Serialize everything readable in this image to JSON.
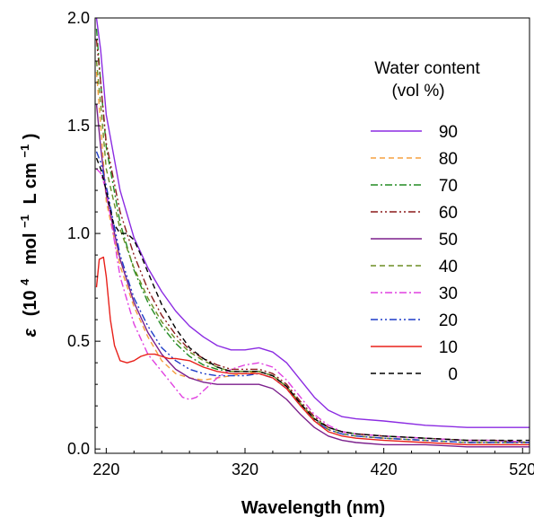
{
  "chart_data": {
    "type": "line",
    "xlabel": "Wavelength (nm)",
    "ylabel": {
      "symbol": "ε",
      "open": "(10",
      "sup1": "4",
      "mid": "mol",
      "sup2": "−1",
      "unit2": "L cm",
      "sup3": "−1",
      "close": ")"
    },
    "xlim": [
      212,
      525
    ],
    "ylim": [
      -0.02,
      2.0
    ],
    "x_ticks": [
      220,
      320,
      420,
      520
    ],
    "x_tick_labels": [
      "220",
      "320",
      "420",
      "520"
    ],
    "y_ticks": [
      0.0,
      0.5,
      1.0,
      1.5,
      2.0
    ],
    "y_tick_labels": [
      "0.0",
      "0.5",
      "1.0",
      "1.5",
      "2.0"
    ],
    "grid": false,
    "legend": {
      "position": "top-right",
      "title": [
        "Water content",
        "(vol %)"
      ]
    },
    "series": [
      {
        "name": "90",
        "color": "#8B2BE2",
        "dash": "solid",
        "x": [
          213,
          216,
          220,
          230,
          240,
          250,
          260,
          270,
          280,
          290,
          300,
          310,
          320,
          330,
          340,
          350,
          360,
          370,
          380,
          390,
          400,
          420,
          450,
          480,
          500,
          525
        ],
        "y": [
          2.0,
          1.85,
          1.55,
          1.2,
          0.98,
          0.84,
          0.73,
          0.64,
          0.57,
          0.52,
          0.48,
          0.46,
          0.46,
          0.47,
          0.45,
          0.4,
          0.32,
          0.24,
          0.18,
          0.15,
          0.14,
          0.13,
          0.11,
          0.1,
          0.1,
          0.1
        ]
      },
      {
        "name": "80",
        "color": "#F5A040",
        "dash": "dashed",
        "x": [
          213,
          216,
          220,
          230,
          240,
          250,
          260,
          270,
          280,
          290,
          300,
          310,
          320,
          330,
          340,
          350,
          360,
          370,
          380,
          390,
          400,
          420,
          450,
          480,
          500,
          525
        ],
        "y": [
          1.75,
          1.5,
          1.15,
          0.85,
          0.66,
          0.52,
          0.41,
          0.35,
          0.33,
          0.32,
          0.33,
          0.34,
          0.35,
          0.36,
          0.34,
          0.29,
          0.21,
          0.13,
          0.09,
          0.07,
          0.06,
          0.05,
          0.04,
          0.03,
          0.03,
          0.03
        ]
      },
      {
        "name": "70",
        "color": "#228B22",
        "dash": "dashdot",
        "x": [
          213,
          216,
          220,
          230,
          240,
          250,
          260,
          270,
          280,
          290,
          300,
          310,
          320,
          330,
          340,
          350,
          360,
          370,
          380,
          390,
          400,
          420,
          450,
          480,
          500,
          525
        ],
        "y": [
          1.95,
          1.7,
          1.4,
          1.05,
          0.83,
          0.68,
          0.57,
          0.49,
          0.43,
          0.39,
          0.37,
          0.36,
          0.36,
          0.36,
          0.34,
          0.29,
          0.21,
          0.14,
          0.1,
          0.08,
          0.07,
          0.06,
          0.05,
          0.04,
          0.04,
          0.03
        ]
      },
      {
        "name": "60",
        "color": "#8B1A1A",
        "dash": "dashdotdot",
        "x": [
          213,
          216,
          220,
          230,
          240,
          250,
          260,
          270,
          280,
          290,
          300,
          310,
          320,
          330,
          340,
          350,
          360,
          370,
          380,
          390,
          400,
          420,
          450,
          480,
          500,
          525
        ],
        "y": [
          1.9,
          1.7,
          1.42,
          1.1,
          0.9,
          0.74,
          0.62,
          0.53,
          0.46,
          0.42,
          0.39,
          0.37,
          0.37,
          0.37,
          0.35,
          0.3,
          0.22,
          0.15,
          0.1,
          0.08,
          0.07,
          0.06,
          0.05,
          0.04,
          0.04,
          0.03
        ]
      },
      {
        "name": "50",
        "color": "#7B1F8C",
        "dash": "solid",
        "x": [
          213,
          216,
          220,
          230,
          240,
          250,
          260,
          270,
          280,
          290,
          300,
          310,
          320,
          330,
          340,
          350,
          360,
          370,
          380,
          390,
          400,
          420,
          450,
          480,
          500,
          525
        ],
        "y": [
          1.6,
          1.4,
          1.18,
          0.88,
          0.68,
          0.54,
          0.44,
          0.37,
          0.33,
          0.31,
          0.3,
          0.3,
          0.3,
          0.3,
          0.28,
          0.23,
          0.16,
          0.1,
          0.06,
          0.04,
          0.03,
          0.02,
          0.02,
          0.01,
          0.01,
          0.01
        ]
      },
      {
        "name": "40",
        "color": "#6B8E23",
        "dash": "dashed",
        "x": [
          213,
          216,
          220,
          230,
          240,
          250,
          260,
          270,
          280,
          290,
          300,
          310,
          320,
          330,
          340,
          350,
          360,
          370,
          380,
          390,
          400,
          420,
          450,
          480,
          500,
          525
        ],
        "y": [
          1.8,
          1.6,
          1.3,
          1.02,
          0.84,
          0.7,
          0.59,
          0.51,
          0.45,
          0.41,
          0.38,
          0.36,
          0.36,
          0.36,
          0.34,
          0.29,
          0.21,
          0.14,
          0.09,
          0.07,
          0.06,
          0.05,
          0.04,
          0.03,
          0.03,
          0.03
        ]
      },
      {
        "name": "30",
        "color": "#E040E0",
        "dash": "dashdot",
        "x": [
          213,
          216,
          220,
          230,
          240,
          250,
          260,
          265,
          270,
          275,
          280,
          285,
          290,
          300,
          310,
          320,
          330,
          340,
          350,
          360,
          370,
          380,
          390,
          400,
          420,
          450,
          480,
          500,
          525
        ],
        "y": [
          1.3,
          1.28,
          1.2,
          0.8,
          0.58,
          0.44,
          0.36,
          0.32,
          0.28,
          0.24,
          0.23,
          0.24,
          0.27,
          0.33,
          0.37,
          0.39,
          0.4,
          0.38,
          0.32,
          0.24,
          0.16,
          0.11,
          0.08,
          0.07,
          0.06,
          0.05,
          0.04,
          0.04,
          0.03
        ]
      },
      {
        "name": "20",
        "color": "#1E3CC8",
        "dash": "dashdotdot",
        "x": [
          213,
          216,
          220,
          230,
          240,
          250,
          260,
          270,
          280,
          290,
          300,
          310,
          320,
          330,
          340,
          350,
          360,
          370,
          380,
          390,
          400,
          420,
          450,
          480,
          500,
          525
        ],
        "y": [
          1.38,
          1.33,
          1.22,
          0.9,
          0.7,
          0.57,
          0.47,
          0.41,
          0.37,
          0.35,
          0.34,
          0.34,
          0.34,
          0.35,
          0.33,
          0.28,
          0.2,
          0.13,
          0.09,
          0.07,
          0.06,
          0.05,
          0.04,
          0.03,
          0.03,
          0.03
        ]
      },
      {
        "name": "10",
        "color": "#E8201A",
        "dash": "solid",
        "x": [
          213,
          215,
          218,
          220,
          223,
          226,
          230,
          235,
          240,
          245,
          250,
          255,
          260,
          265,
          270,
          280,
          290,
          300,
          310,
          320,
          330,
          340,
          350,
          360,
          370,
          380,
          390,
          400,
          420,
          450,
          480,
          500,
          525
        ],
        "y": [
          0.75,
          0.88,
          0.89,
          0.8,
          0.6,
          0.48,
          0.41,
          0.4,
          0.41,
          0.43,
          0.44,
          0.44,
          0.43,
          0.42,
          0.42,
          0.41,
          0.38,
          0.36,
          0.35,
          0.35,
          0.35,
          0.33,
          0.28,
          0.2,
          0.13,
          0.08,
          0.06,
          0.05,
          0.04,
          0.03,
          0.02,
          0.02,
          0.02
        ]
      },
      {
        "name": "0",
        "color": "#000000",
        "dash": "dashed",
        "x": [
          213,
          216,
          220,
          225,
          230,
          235,
          240,
          245,
          250,
          260,
          270,
          280,
          290,
          300,
          310,
          320,
          330,
          340,
          350,
          360,
          370,
          380,
          390,
          400,
          420,
          450,
          480,
          500,
          525
        ],
        "y": [
          1.35,
          1.3,
          1.2,
          1.05,
          1.0,
          1.0,
          0.97,
          0.9,
          0.82,
          0.67,
          0.56,
          0.47,
          0.42,
          0.38,
          0.36,
          0.36,
          0.36,
          0.34,
          0.29,
          0.21,
          0.14,
          0.1,
          0.08,
          0.07,
          0.06,
          0.05,
          0.04,
          0.04,
          0.04
        ]
      }
    ]
  }
}
